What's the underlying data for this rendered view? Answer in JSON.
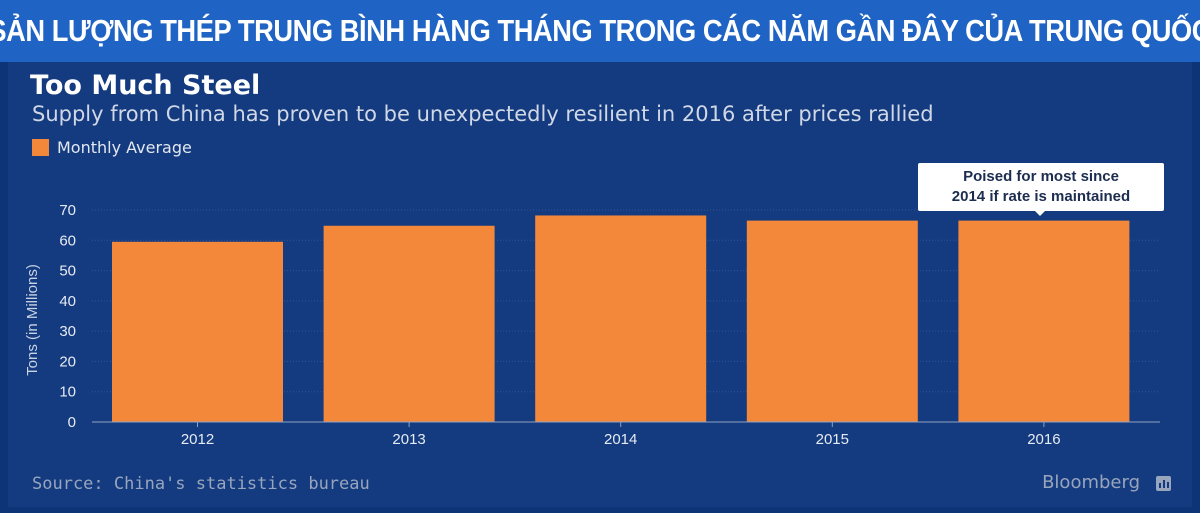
{
  "banner": {
    "title": "SẢN LƯỢNG THÉP TRUNG BÌNH HÀNG THÁNG TRONG CÁC NĂM GẦN ĐÂY CỦA TRUNG QUỐC"
  },
  "chart_data": {
    "type": "bar",
    "title": "Too Much Steel",
    "subtitle": "Supply from China has proven to be unexpectedly resilient in 2016 after prices rallied",
    "categories": [
      "2012",
      "2013",
      "2014",
      "2015",
      "2016"
    ],
    "series": [
      {
        "name": "Monthly Average",
        "values": [
          59.5,
          64.8,
          68.2,
          66.5,
          66.5
        ]
      }
    ],
    "ylabel": "Tons (in Millions)",
    "xlabel": "",
    "ylim": [
      0,
      70
    ],
    "yticks": [
      0,
      10,
      20,
      30,
      40,
      50,
      60,
      70
    ],
    "grid": true,
    "legend_position": "top-left",
    "bar_color": "#f4883a",
    "annotation": {
      "line1": "Poised for most since",
      "line2": "2014 if rate is maintained",
      "target": "2016"
    }
  },
  "footer": {
    "source": "Source: China's statistics bureau",
    "brand": "Bloomberg",
    "brand_icon": "bloomberg-chart-icon"
  }
}
